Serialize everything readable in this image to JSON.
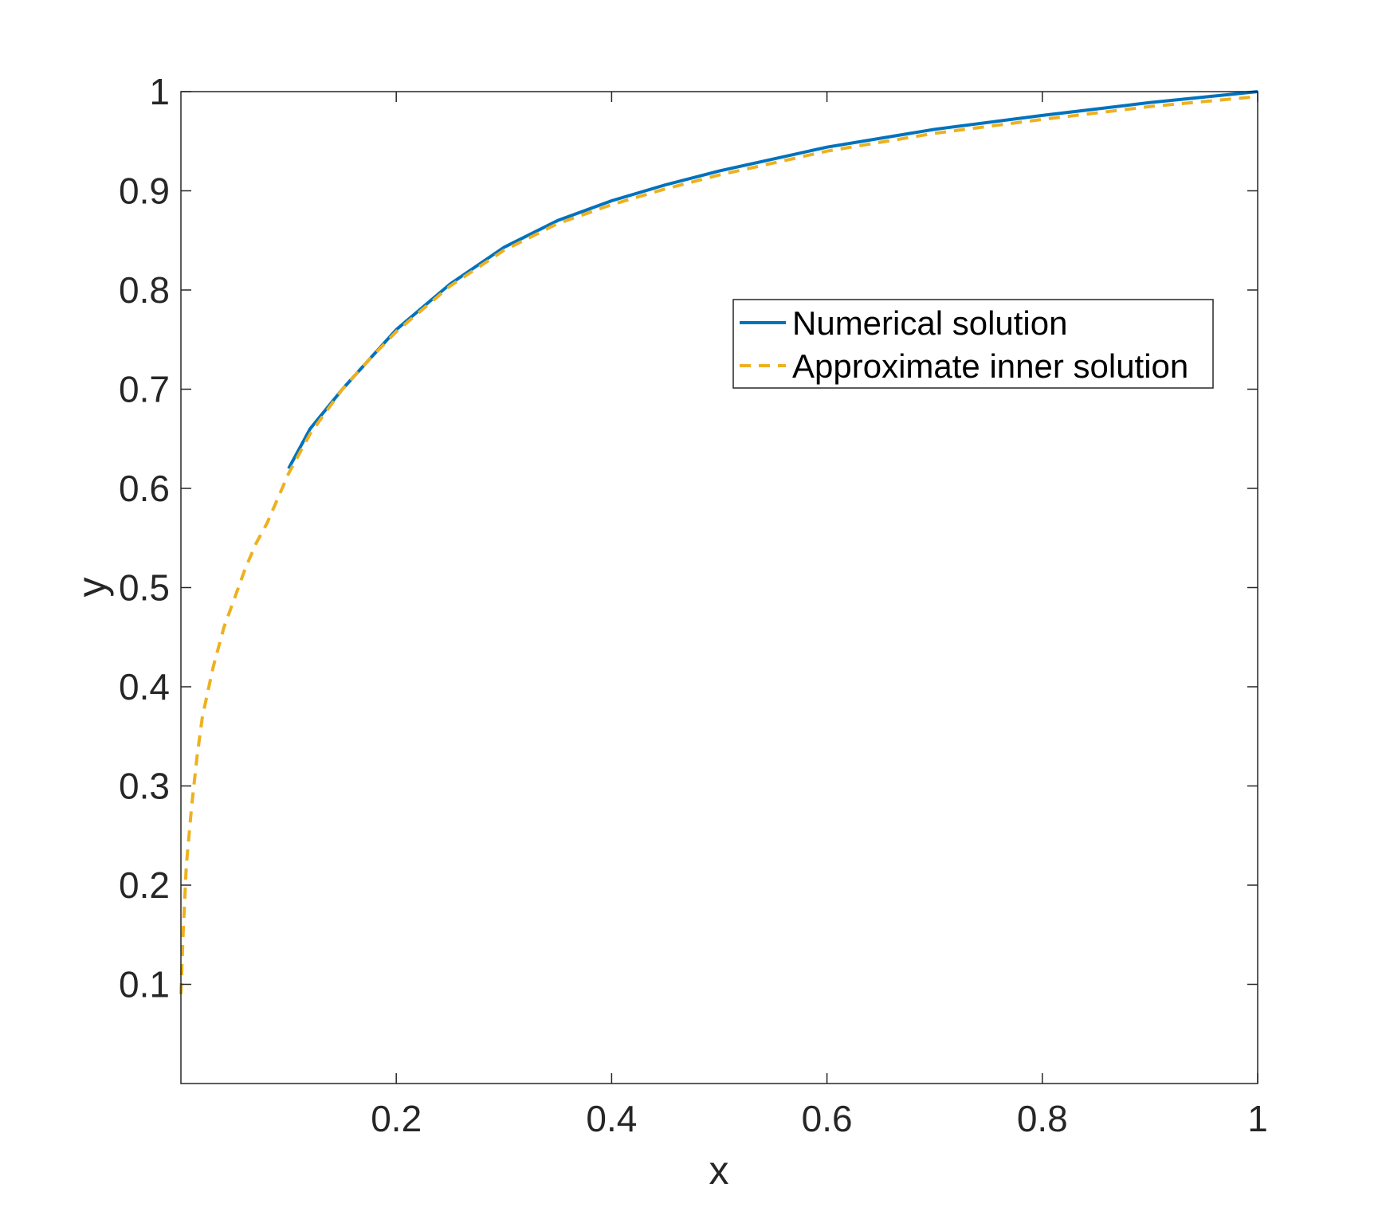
{
  "chart_data": {
    "type": "line",
    "title": "",
    "xlabel": "x",
    "ylabel": "y",
    "xlim": [
      0,
      1
    ],
    "ylim": [
      0,
      1
    ],
    "xticks": [
      0.2,
      0.4,
      0.6,
      0.8,
      1
    ],
    "xtick_labels": [
      "0.2",
      "0.4",
      "0.6",
      "0.8",
      "1"
    ],
    "yticks": [
      0.1,
      0.2,
      0.3,
      0.4,
      0.5,
      0.6,
      0.7,
      0.8,
      0.9,
      1
    ],
    "ytick_labels": [
      "0.1",
      "0.2",
      "0.3",
      "0.4",
      "0.5",
      "0.6",
      "0.7",
      "0.8",
      "0.9",
      "1"
    ],
    "grid": false,
    "legend_position": "upper-right",
    "series": [
      {
        "name": "Numerical solution",
        "color": "#0072bd",
        "style": "solid",
        "x": [
          0.1,
          0.12,
          0.15,
          0.175,
          0.2,
          0.25,
          0.3,
          0.35,
          0.4,
          0.45,
          0.5,
          0.6,
          0.7,
          0.8,
          0.9,
          1.0
        ],
        "y": [
          0.62,
          0.66,
          0.7,
          0.73,
          0.76,
          0.806,
          0.843,
          0.87,
          0.89,
          0.906,
          0.92,
          0.944,
          0.962,
          0.976,
          0.989,
          1.0
        ]
      },
      {
        "name": "Approximate inner solution",
        "color": "#edb120",
        "style": "dashed",
        "x": [
          0.0,
          0.002,
          0.005,
          0.01,
          0.015,
          0.02,
          0.03,
          0.04,
          0.05,
          0.06,
          0.07,
          0.08,
          0.1,
          0.12,
          0.15,
          0.175,
          0.2,
          0.25,
          0.3,
          0.35,
          0.4,
          0.45,
          0.5,
          0.6,
          0.7,
          0.8,
          0.9,
          1.0
        ],
        "y": [
          0.09,
          0.15,
          0.22,
          0.28,
          0.33,
          0.37,
          0.42,
          0.46,
          0.49,
          0.52,
          0.545,
          0.565,
          0.615,
          0.655,
          0.7,
          0.73,
          0.758,
          0.804,
          0.84,
          0.867,
          0.886,
          0.902,
          0.916,
          0.94,
          0.958,
          0.972,
          0.985,
          0.995
        ]
      }
    ]
  }
}
